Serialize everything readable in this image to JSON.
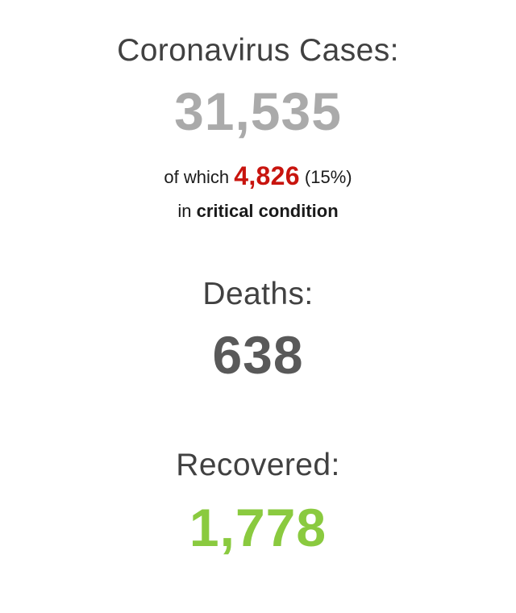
{
  "cases": {
    "label": "Coronavirus Cases:",
    "value": "31,535",
    "color": "#aaaaaa",
    "critical": {
      "prefix": "of which",
      "value": "4,826",
      "value_color": "#c8140e",
      "percent": "(15%)",
      "line2_prefix": "in",
      "line2_bold": "critical condition"
    }
  },
  "deaths": {
    "label": "Deaths:",
    "value": "638",
    "color": "#595959"
  },
  "recovered": {
    "label": "Recovered:",
    "value": "1,778",
    "color": "#8aca3f"
  }
}
